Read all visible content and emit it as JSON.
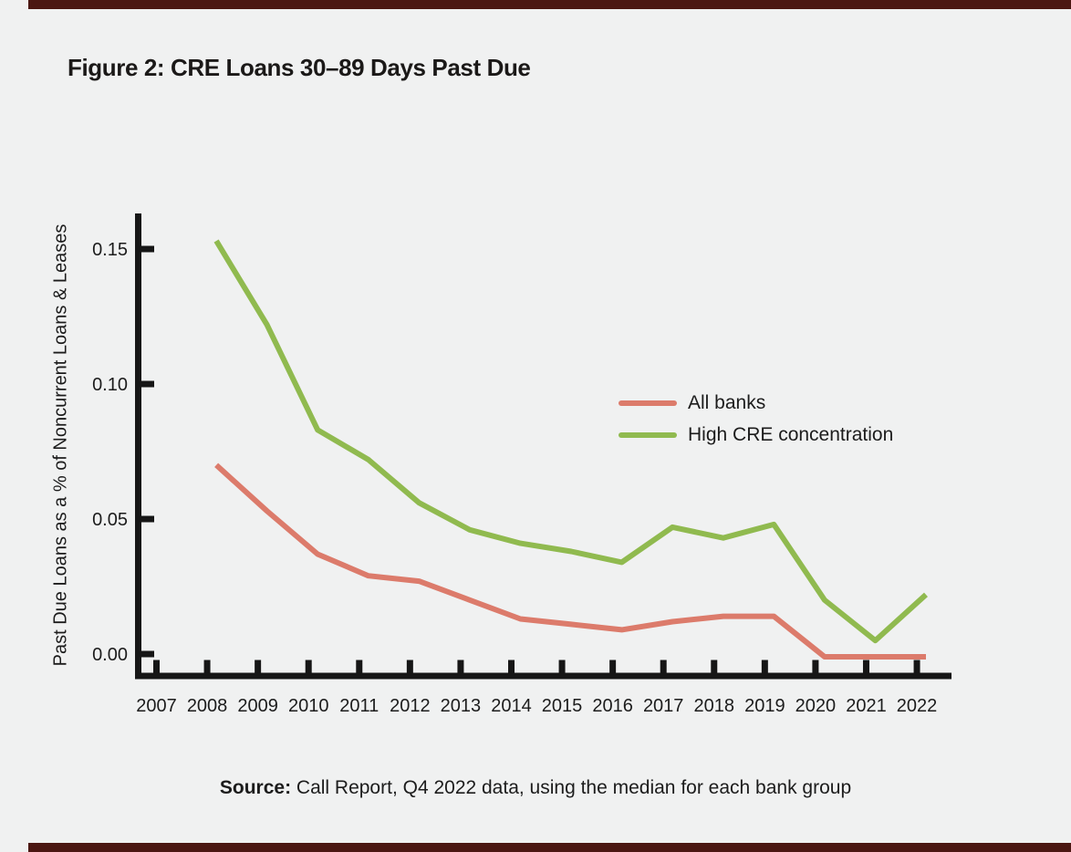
{
  "page": {
    "title": "Figure 2: CRE Loans 30–89 Days Past Due"
  },
  "source": {
    "label": "Source:",
    "text": " Call Report, Q4 2022 data, using the median for each bank group"
  },
  "colors": {
    "background": "#f0f1f1",
    "axis": "#161616",
    "text": "#1c1c1c",
    "page_edge": "#4b1712",
    "all_banks_line": "#dc7b6b",
    "high_cre_line": "#90ba4f"
  },
  "chart_data": {
    "type": "line",
    "title": "Figure 2: CRE Loans 30–89 Days Past Due",
    "xlabel": "",
    "ylabel": "Past Due Loans as a % of Noncurrent Loans & Leases",
    "xticks": [
      "2007",
      "2008",
      "2009",
      "2010",
      "2011",
      "2012",
      "2013",
      "2014",
      "2015",
      "2016",
      "2017",
      "2018",
      "2019",
      "2020",
      "2021",
      "2022"
    ],
    "yticks": [
      {
        "label": "0.00",
        "value": 0.0
      },
      {
        "label": "0.05",
        "value": 0.05
      },
      {
        "label": "0.10",
        "value": 0.1
      },
      {
        "label": "0.15",
        "value": 0.15
      }
    ],
    "ylim": [
      -0.01,
      0.17
    ],
    "grid": false,
    "legend_position": "center-right",
    "series": [
      {
        "name": "All banks",
        "color": "#dc7b6b",
        "x": [
          2008,
          2009,
          2010,
          2011,
          2012,
          2013,
          2014,
          2015,
          2016,
          2017,
          2018,
          2019,
          2020,
          2021,
          2022
        ],
        "values": [
          0.07,
          0.053,
          0.037,
          0.029,
          0.027,
          0.02,
          0.013,
          0.011,
          0.009,
          0.012,
          0.014,
          0.014,
          -0.001,
          -0.001,
          -0.001
        ]
      },
      {
        "name": "High CRE concentration",
        "color": "#90ba4f",
        "x": [
          2008,
          2009,
          2010,
          2011,
          2012,
          2013,
          2014,
          2015,
          2016,
          2017,
          2018,
          2019,
          2020,
          2021,
          2022
        ],
        "values": [
          0.153,
          0.122,
          0.083,
          0.072,
          0.056,
          0.046,
          0.041,
          0.038,
          0.034,
          0.047,
          0.043,
          0.048,
          0.02,
          0.005,
          0.022
        ]
      }
    ]
  }
}
